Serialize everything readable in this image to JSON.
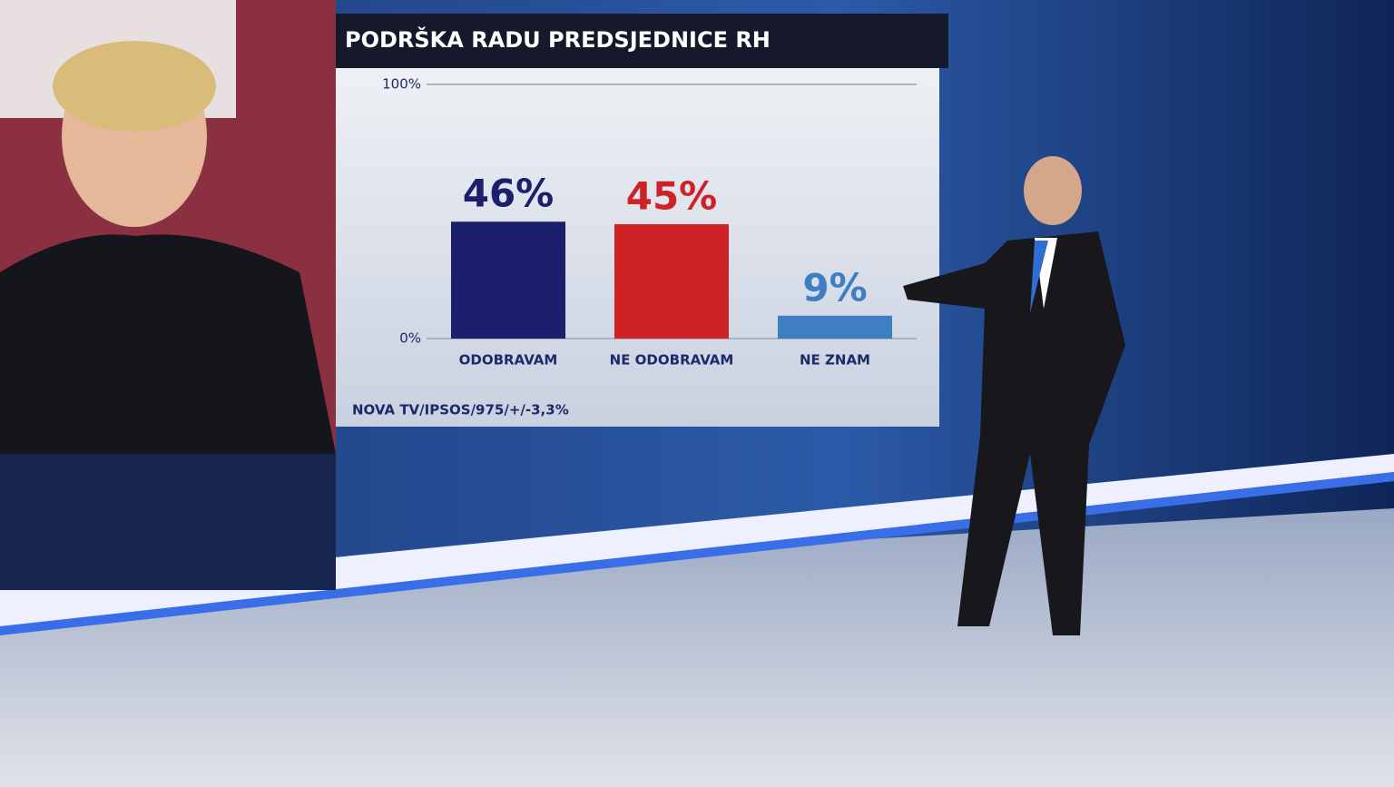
{
  "chart_data": {
    "type": "bar",
    "title": "PODRŠKA RADU PREDSJEDNICE RH",
    "categories": [
      "ODOBRAVAM",
      "NE ODOBRAVAM",
      "NE ZNAM"
    ],
    "values": [
      46,
      45,
      9
    ],
    "value_labels": [
      "46%",
      "45%",
      "9%"
    ],
    "colors": [
      "#1c1f6b",
      "#cf2226",
      "#3d7fc2"
    ],
    "ylim": [
      0,
      100
    ],
    "yticks": [
      {
        "value": 0,
        "label": "0%"
      },
      {
        "value": 100,
        "label": "100%"
      }
    ],
    "grid": true,
    "source": "NOVA TV/IPSOS/975/+/-3,3%"
  }
}
